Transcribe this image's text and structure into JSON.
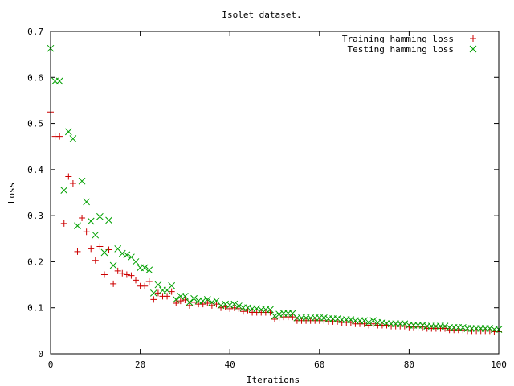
{
  "chart_data": {
    "type": "scatter",
    "title": "Isolet dataset.",
    "xlabel": "Iterations",
    "ylabel": "Loss",
    "xlim": [
      0,
      100
    ],
    "ylim": [
      0,
      0.7
    ],
    "x_ticks": [
      0,
      20,
      40,
      60,
      80,
      100
    ],
    "y_ticks": [
      0,
      0.1,
      0.2,
      0.3,
      0.4,
      0.5,
      0.6,
      0.7
    ],
    "x_tick_labels": [
      "0",
      "20",
      "40",
      "60",
      "80",
      "100"
    ],
    "y_tick_labels": [
      "0",
      "0.1",
      "0.2",
      "0.3",
      "0.4",
      "0.5",
      "0.6",
      "0.7"
    ],
    "grid": false,
    "legend_position": "top-right",
    "x": [
      0,
      1,
      2,
      3,
      4,
      5,
      6,
      7,
      8,
      9,
      10,
      11,
      12,
      13,
      14,
      15,
      16,
      17,
      18,
      19,
      20,
      21,
      22,
      23,
      24,
      25,
      26,
      27,
      28,
      29,
      30,
      31,
      32,
      33,
      34,
      35,
      36,
      37,
      38,
      39,
      40,
      41,
      42,
      43,
      44,
      45,
      46,
      47,
      48,
      49,
      50,
      51,
      52,
      53,
      54,
      55,
      56,
      57,
      58,
      59,
      60,
      61,
      62,
      63,
      64,
      65,
      66,
      67,
      68,
      69,
      70,
      71,
      72,
      73,
      74,
      75,
      76,
      77,
      78,
      79,
      80,
      81,
      82,
      83,
      84,
      85,
      86,
      87,
      88,
      89,
      90,
      91,
      92,
      93,
      94,
      95,
      96,
      97,
      98,
      99,
      100
    ],
    "series": [
      {
        "name": "Training hamming loss",
        "color": "#cc0000",
        "marker": "plus",
        "values": [
          0.525,
          0.472,
          0.472,
          0.283,
          0.385,
          0.37,
          0.222,
          0.295,
          0.265,
          0.228,
          0.203,
          0.233,
          0.172,
          0.226,
          0.152,
          0.18,
          0.175,
          0.172,
          0.17,
          0.16,
          0.147,
          0.147,
          0.157,
          0.118,
          0.132,
          0.125,
          0.125,
          0.135,
          0.11,
          0.115,
          0.117,
          0.105,
          0.112,
          0.108,
          0.108,
          0.11,
          0.105,
          0.108,
          0.1,
          0.102,
          0.098,
          0.1,
          0.098,
          0.092,
          0.095,
          0.09,
          0.09,
          0.09,
          0.09,
          0.09,
          0.075,
          0.078,
          0.08,
          0.08,
          0.08,
          0.072,
          0.072,
          0.072,
          0.072,
          0.072,
          0.072,
          0.072,
          0.07,
          0.07,
          0.07,
          0.068,
          0.068,
          0.068,
          0.065,
          0.065,
          0.065,
          0.062,
          0.065,
          0.062,
          0.062,
          0.062,
          0.06,
          0.06,
          0.06,
          0.06,
          0.058,
          0.058,
          0.058,
          0.058,
          0.055,
          0.055,
          0.055,
          0.055,
          0.055,
          0.052,
          0.052,
          0.052,
          0.052,
          0.05,
          0.05,
          0.05,
          0.05,
          0.05,
          0.05,
          0.048,
          0.048
        ]
      },
      {
        "name": "Testing hamming loss",
        "color": "#00a000",
        "marker": "cross",
        "values": [
          0.663,
          0.592,
          0.592,
          0.355,
          0.482,
          0.467,
          0.278,
          0.375,
          0.33,
          0.288,
          0.258,
          0.298,
          0.22,
          0.29,
          0.192,
          0.228,
          0.218,
          0.215,
          0.21,
          0.2,
          0.187,
          0.187,
          0.182,
          0.132,
          0.15,
          0.138,
          0.138,
          0.148,
          0.118,
          0.125,
          0.125,
          0.112,
          0.12,
          0.115,
          0.115,
          0.118,
          0.112,
          0.115,
          0.105,
          0.108,
          0.106,
          0.108,
          0.104,
          0.1,
          0.1,
          0.098,
          0.098,
          0.096,
          0.096,
          0.096,
          0.082,
          0.086,
          0.088,
          0.088,
          0.088,
          0.078,
          0.078,
          0.078,
          0.078,
          0.078,
          0.078,
          0.078,
          0.076,
          0.076,
          0.076,
          0.074,
          0.074,
          0.074,
          0.072,
          0.072,
          0.072,
          0.068,
          0.072,
          0.068,
          0.068,
          0.066,
          0.065,
          0.065,
          0.065,
          0.065,
          0.062,
          0.062,
          0.062,
          0.062,
          0.06,
          0.06,
          0.06,
          0.06,
          0.06,
          0.057,
          0.057,
          0.057,
          0.057,
          0.055,
          0.055,
          0.055,
          0.055,
          0.055,
          0.055,
          0.053,
          0.053
        ]
      }
    ]
  }
}
